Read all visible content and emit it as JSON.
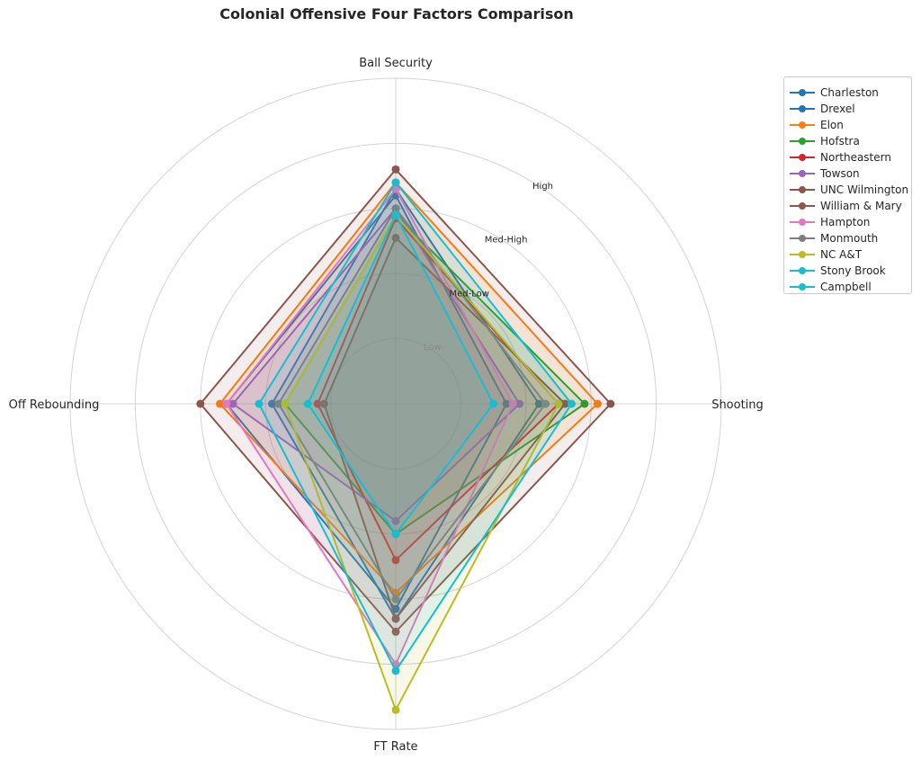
{
  "chart_data": {
    "type": "radar",
    "title": "Colonial Offensive Four Factors Comparison",
    "axes": [
      "Ball Security",
      "Shooting",
      "FT Rate",
      "Off Rebounding"
    ],
    "levels": [
      "Low",
      "Med-Low",
      "Med-High",
      "High"
    ],
    "range": [
      0,
      5
    ],
    "grid": true,
    "legend_position": "upper right, outside plot",
    "series": [
      {
        "name": "Charleston",
        "color": "#1f77b4",
        "values": [
          3.2,
          1.7,
          3.15,
          2.6
        ]
      },
      {
        "name": "Drexel",
        "color": "#1f77b4",
        "values": [
          3.3,
          2.2,
          3.3,
          1.9
        ]
      },
      {
        "name": "Elon",
        "color": "#ff7f0e",
        "values": [
          3.4,
          3.1,
          2.9,
          2.7
        ]
      },
      {
        "name": "Hofstra",
        "color": "#2ca02c",
        "values": [
          2.9,
          2.9,
          2.0,
          1.7
        ]
      },
      {
        "name": "Northeastern",
        "color": "#d62728",
        "values": [
          2.85,
          2.5,
          2.4,
          1.2
        ]
      },
      {
        "name": "Towson",
        "color": "#9467bd",
        "values": [
          3.0,
          1.9,
          1.8,
          2.5
        ]
      },
      {
        "name": "UNC Wilmington",
        "color": "#8c564b",
        "values": [
          3.6,
          3.3,
          3.5,
          3.0
        ]
      },
      {
        "name": "William & Mary",
        "color": "#8c564b",
        "values": [
          2.55,
          2.6,
          3.3,
          1.1
        ]
      },
      {
        "name": "Hampton",
        "color": "#e377c2",
        "values": [
          3.3,
          1.8,
          4.0,
          2.6
        ]
      },
      {
        "name": "Monmouth",
        "color": "#7f7f7f",
        "values": [
          3.0,
          2.3,
          3.0,
          1.8
        ]
      },
      {
        "name": "NC A&T",
        "color": "#bcbd22",
        "values": [
          2.9,
          2.5,
          4.7,
          1.7
        ]
      },
      {
        "name": "Stony Brook",
        "color": "#17becf",
        "values": [
          3.4,
          2.7,
          4.1,
          2.1
        ]
      },
      {
        "name": "Campbell",
        "color": "#17becf",
        "values": [
          2.9,
          1.5,
          2.0,
          1.35
        ]
      }
    ]
  }
}
